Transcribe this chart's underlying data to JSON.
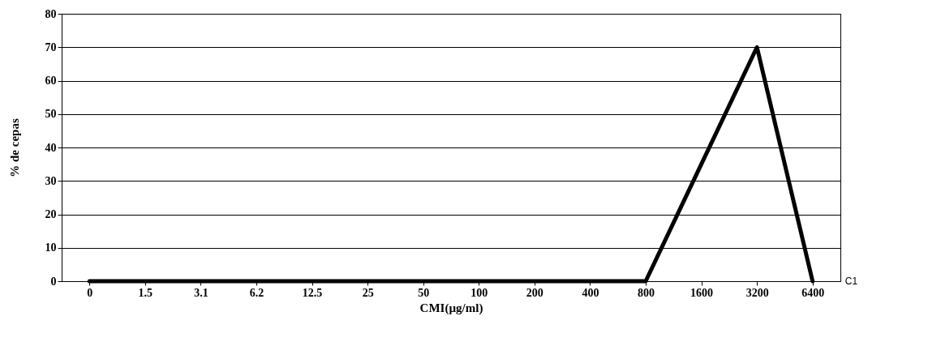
{
  "chart_data": {
    "type": "line",
    "xlabel": "CMI(µg/ml)",
    "ylabel": "% de cepas",
    "categories": [
      "0",
      "1.5",
      "3.1",
      "6.2",
      "12.5",
      "25",
      "50",
      "100",
      "200",
      "400",
      "800",
      "1600",
      "3200",
      "6400"
    ],
    "series": [
      {
        "name": "C1",
        "color": "#000000",
        "values": [
          0,
          0,
          0,
          0,
          0,
          0,
          0,
          0,
          0,
          0,
          0,
          35,
          70,
          0
        ]
      }
    ],
    "ylim": [
      0,
      80
    ],
    "yticks": [
      0,
      10,
      20,
      30,
      40,
      50,
      60,
      70,
      80
    ],
    "grid": "y",
    "marker": "none",
    "line_style": "solid"
  }
}
